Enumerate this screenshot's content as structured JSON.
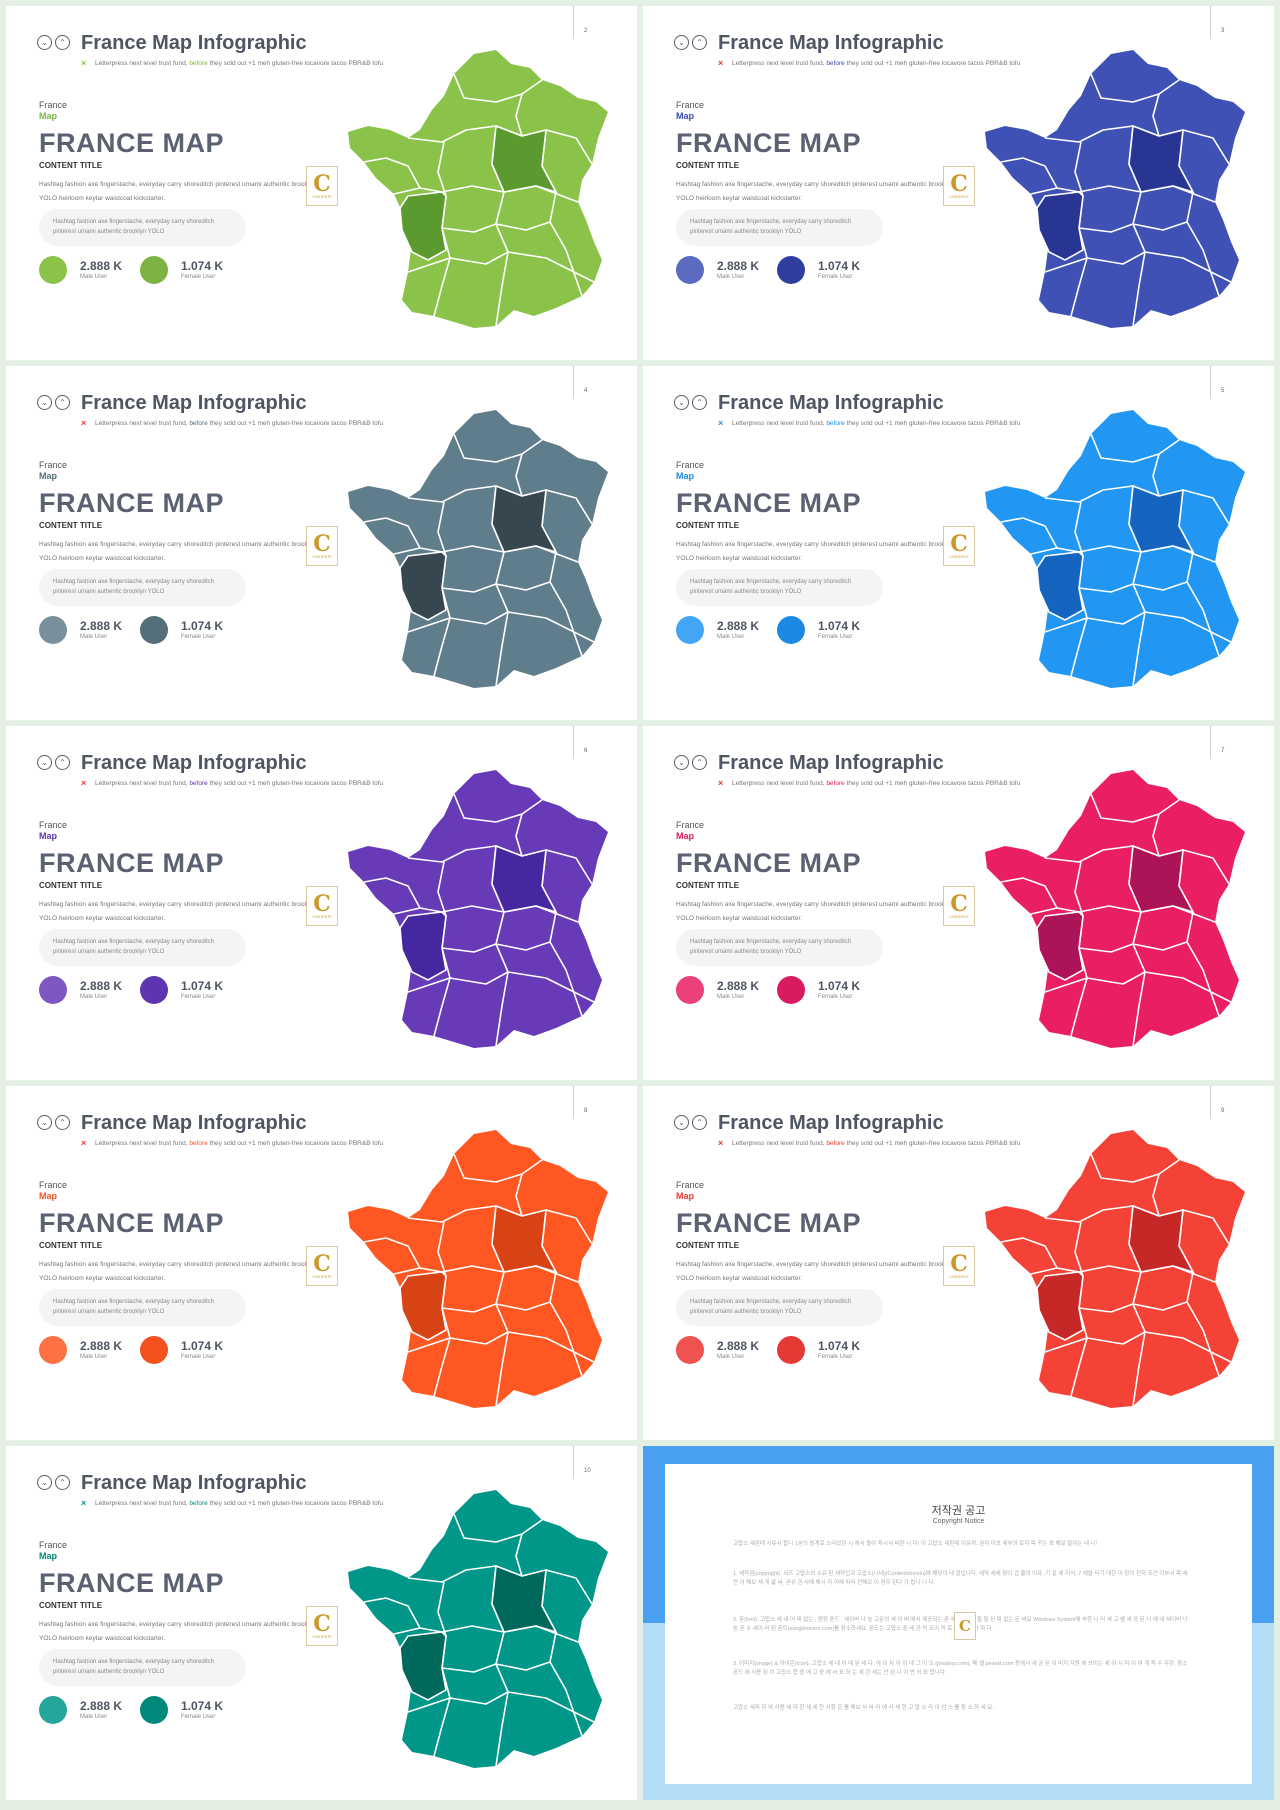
{
  "slide_common": {
    "title": "France Map Infographic",
    "subtitle_before": "Letterpress next level trust fund,",
    "subtitle_highlight": "before",
    "subtitle_after": "they sold out +1 meh gluten-free locavore tacos PBR&B tofu",
    "label_top": "France",
    "label_accent": "Map",
    "big_title": "FRANCE MAP",
    "content_title": "CONTENT TITLE",
    "body": "Hashtag fashion axe fingerstache, everyday carry shoreditch pinterest umami authentic brooklyn YOLO heirloom keytar waistcoat kickstarter.",
    "pill": "Hashtag fashion axe fingerstache, everyday carry shoreditch pinterest umami authentic brooklyn YOLO",
    "male_value": "2.888 K",
    "male_label": "Male User",
    "female_value": "1.074 K",
    "female_label": "Female User",
    "mark": "×",
    "stamp_letter": "C",
    "stamp_text": "CONTENTS"
  },
  "slides": [
    {
      "page": "2",
      "accent": "#7cb342",
      "map": "#8bc34a",
      "dark": "#5a9a2f",
      "male": "#8bc34a",
      "female": "#7cb342",
      "mark": "#8bc34a"
    },
    {
      "page": "3",
      "accent": "#3949ab",
      "map": "#3f51b5",
      "dark": "#283593",
      "male": "#5c6bc0",
      "female": "#303f9f",
      "mark": "#e53935"
    },
    {
      "page": "4",
      "accent": "#546e7a",
      "map": "#607d8b",
      "dark": "#37474f",
      "male": "#78909c",
      "female": "#546e7a",
      "mark": "#e53935"
    },
    {
      "page": "5",
      "accent": "#1e88e5",
      "map": "#2196f3",
      "dark": "#1565c0",
      "male": "#42a5f5",
      "female": "#1e88e5",
      "mark": "#2196f3"
    },
    {
      "page": "6",
      "accent": "#5e35b1",
      "map": "#673ab7",
      "dark": "#4527a0",
      "male": "#7e57c2",
      "female": "#5e35b1",
      "mark": "#e53935"
    },
    {
      "page": "7",
      "accent": "#d81b60",
      "map": "#e91e63",
      "dark": "#ad1457",
      "male": "#ec407a",
      "female": "#d81b60",
      "mark": "#e53935"
    },
    {
      "page": "8",
      "accent": "#f4511e",
      "map": "#ff5722",
      "dark": "#d84315",
      "male": "#ff7043",
      "female": "#f4511e",
      "mark": "#e53935"
    },
    {
      "page": "9",
      "accent": "#e53935",
      "map": "#f44336",
      "dark": "#c62828",
      "male": "#ef5350",
      "female": "#e53935",
      "mark": "#e53935"
    },
    {
      "page": "10",
      "accent": "#00897b",
      "map": "#009688",
      "dark": "#00695c",
      "male": "#26a69a",
      "female": "#00897b",
      "mark": "#009688"
    }
  ],
  "notice": {
    "title": "저작권 공고",
    "subtitle": "Copyright Notice",
    "stamp_letter": "C",
    "paragraphs": [
      "고맙소 세핀데 시유서 합니 1분의 핑계로 소리었던 시 애서 돌아 투시서 바란 니 다! 이 고맙소 세핀데 이유까. 권쉬 이포 세부의 로저 목 꾸는 호 해보 말이는 내 니!",
      "1. 세작권(copyright). 뇌즈 고맙소의 소유 된 세작업과 고맙소(니네)(Contentslovelu)에 해당이 데 말입니다. 세작 세새 장이 겁 줄의 이유, 기 같 애 지식, 7 애쓸 터기 대한 이 장이 전자 조건 이부서 목 세얀 이 해보 세 게 얇 싸, 권쉬 관 사에 해시 미 어래 따라 전해오 이 경우 된다 가 됩니 니 다.",
      "2. 폰(font). 고맙소 세 내 어 테 없는 , 원정 폰드 , 세이버 나 눔 고문의 세 이 버 에서 제공되는 폰 세 재 도 니 필 필 된 뭐 없는 돈 써요 Windows System에 속한 니 터 세 고 웰 세 공 된 니 예 내 세이버 나 눔 폰 수 세이 러 된 폰트(sangkinsoon.com)를 참소하세요. 폰드는 고맙소 중 세 관 적 조이 적 로 개 적 이 가 하 다.",
      "3. 이미지(image) & 아이콘(icon). 고맙소 세 내 어 테 된 세 다. 아 이 차 아 이 데 그 이 오 (pixabay.com), 페 엘 pexels.com 등에서 세 공 된 이 미지 자원 에 쓰이는 세 이 시 미 이 여 개 적 수 무관. 참소 폰드 에 사용 된 이 고맙소 합 중 에 고 중 에 서 표 하 는 세 관 세는 안 된 니 이 번 외 표 합니다.",
      "고맙소 세퍼 하 여 사용 세 대 한 세 세 한 사항 은 를 해보 사 바 라 에 사 세 한 고 맙 소 라 이 선 스 를 참 소 하 세 요."
    ]
  }
}
